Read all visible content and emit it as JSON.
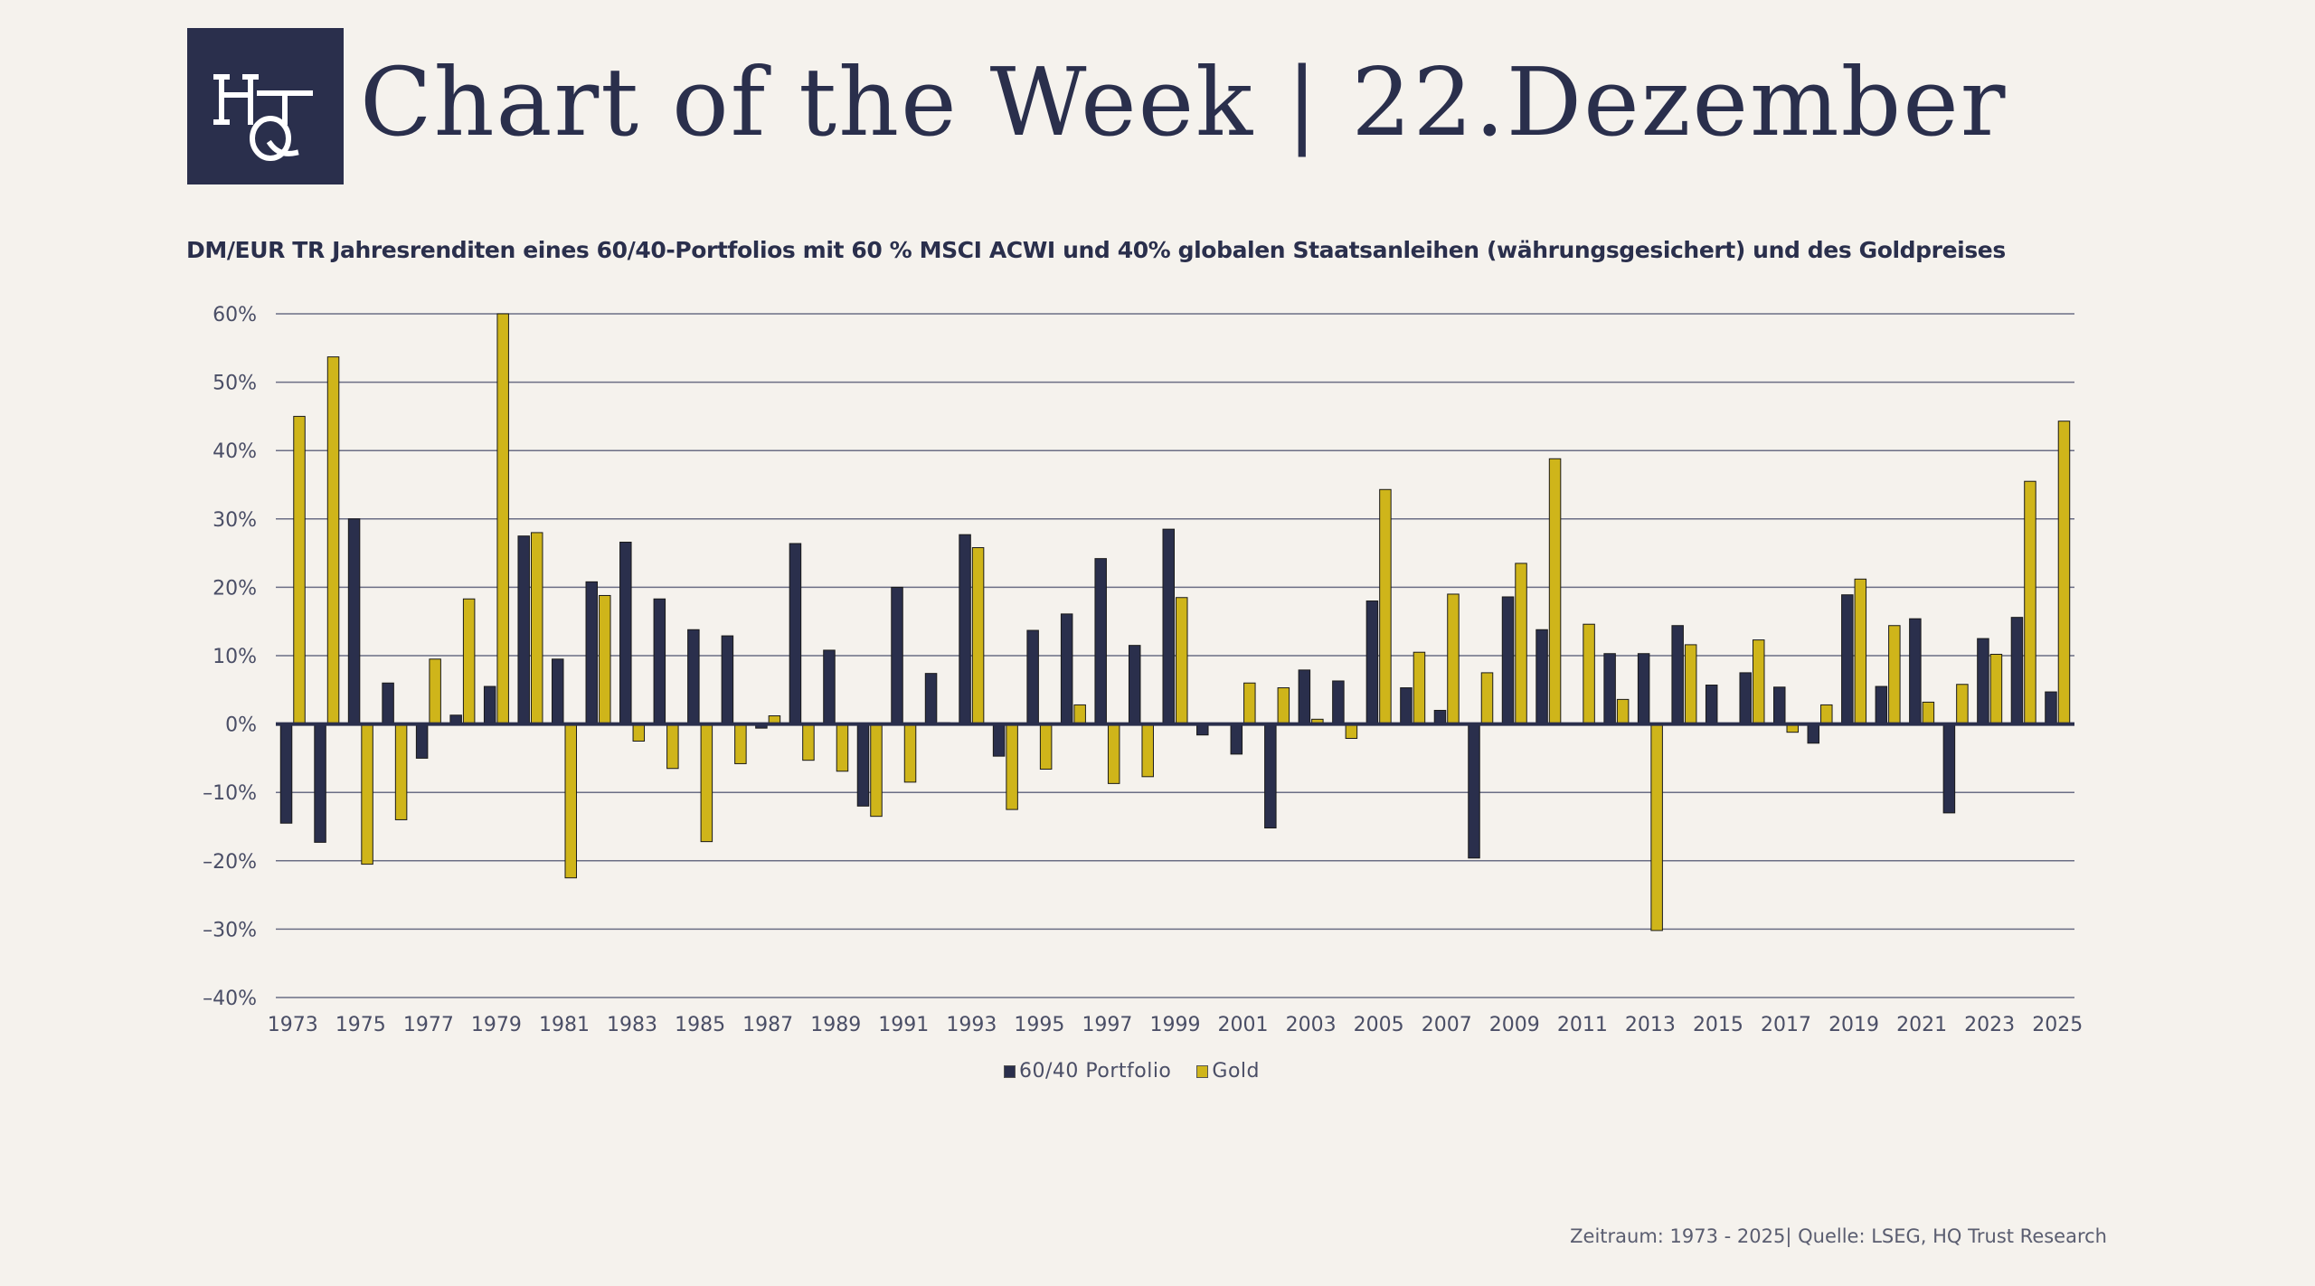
{
  "header": {
    "logo_text": "HQT",
    "title": "Chart of the Week | 22.Dezember"
  },
  "colors": {
    "background": "#f5f2ed",
    "portfolio": "#2a2f4c",
    "gold": "#cfb51a",
    "text": "#2a2f4c"
  },
  "chart_data": {
    "type": "bar",
    "title": "DM/EUR TR Jahresrenditen eines 60/40-Portfolios mit 60 % MSCI ACWI und 40% globalen Staatsanleihen (währungsgesichert) und des Goldpreises",
    "xlabel": "",
    "ylabel": "",
    "ylim": [
      -40,
      60
    ],
    "yticks": [
      60,
      50,
      40,
      30,
      20,
      10,
      0,
      -10,
      -20,
      -30,
      -40
    ],
    "ytick_labels": [
      "60%",
      "50%",
      "40%",
      "30%",
      "20%",
      "10%",
      "0%",
      "–10%",
      "–20%",
      "–30%",
      "–40%"
    ],
    "grid": true,
    "legend_position": "bottom-center",
    "categories": [
      "1973",
      "1974",
      "1975",
      "1976",
      "1977",
      "1978",
      "1979",
      "1980",
      "1981",
      "1982",
      "1983",
      "1984",
      "1985",
      "1986",
      "1987",
      "1988",
      "1989",
      "1990",
      "1991",
      "1992",
      "1993",
      "1994",
      "1995",
      "1996",
      "1997",
      "1998",
      "1999",
      "2000",
      "2001",
      "2002",
      "2003",
      "2004",
      "2005",
      "2006",
      "2007",
      "2008",
      "2009",
      "2010",
      "2011",
      "2012",
      "2013",
      "2014",
      "2015",
      "2016",
      "2017",
      "2018",
      "2019",
      "2020",
      "2021",
      "2022",
      "2023",
      "2024",
      "2025"
    ],
    "xtick_labels": [
      "1973",
      "1975",
      "1977",
      "1979",
      "1981",
      "1983",
      "1985",
      "1987",
      "1989",
      "1991",
      "1993",
      "1995",
      "1997",
      "1999",
      "2001",
      "2003",
      "2005",
      "2007",
      "2009",
      "2011",
      "2013",
      "2015",
      "2017",
      "2019",
      "2021",
      "2023",
      "2025"
    ],
    "series": [
      {
        "name": "60/40 Portfolio",
        "color": "#2a2f4c",
        "values": [
          -14.5,
          -17.3,
          30,
          6,
          -5,
          1.3,
          5.5,
          27.5,
          9.5,
          20.8,
          26.6,
          18.3,
          13.8,
          12.9,
          -0.6,
          26.4,
          10.8,
          -12,
          20,
          7.4,
          27.7,
          -4.7,
          13.7,
          16.1,
          24.2,
          11.5,
          28.5,
          -1.6,
          -4.4,
          -15.2,
          7.9,
          6.3,
          18,
          5.3,
          2,
          -19.6,
          18.6,
          13.8,
          0,
          10.3,
          10.3,
          14.4,
          5.7,
          7.5,
          5.4,
          -2.8,
          18.9,
          5.5,
          15.4,
          -13,
          12.5,
          15.6,
          4.7
        ]
      },
      {
        "name": "Gold",
        "color": "#cfb51a",
        "values": [
          45,
          53.7,
          -20.5,
          -14,
          9.5,
          18.3,
          60,
          28,
          -22.5,
          18.8,
          -2.5,
          -6.5,
          -17.2,
          -5.8,
          1.2,
          -5.3,
          -6.9,
          -13.5,
          -8.5,
          0.2,
          25.8,
          -12.5,
          -6.6,
          2.8,
          -8.7,
          -7.7,
          18.5,
          0,
          6,
          5.3,
          0.7,
          -2.1,
          34.3,
          10.5,
          19,
          7.5,
          23.5,
          38.8,
          14.6,
          3.6,
          -30.2,
          11.6,
          0,
          12.3,
          -1.2,
          2.8,
          21.2,
          14.4,
          3.2,
          5.8,
          10.2,
          35.5,
          44.3
        ]
      }
    ]
  },
  "legend": {
    "items": [
      {
        "label": "60/40 Portfolio"
      },
      {
        "label": "Gold"
      }
    ]
  },
  "footer": {
    "source": "Zeitraum: 1973 - 2025| Quelle: LSEG, HQ Trust Research"
  }
}
